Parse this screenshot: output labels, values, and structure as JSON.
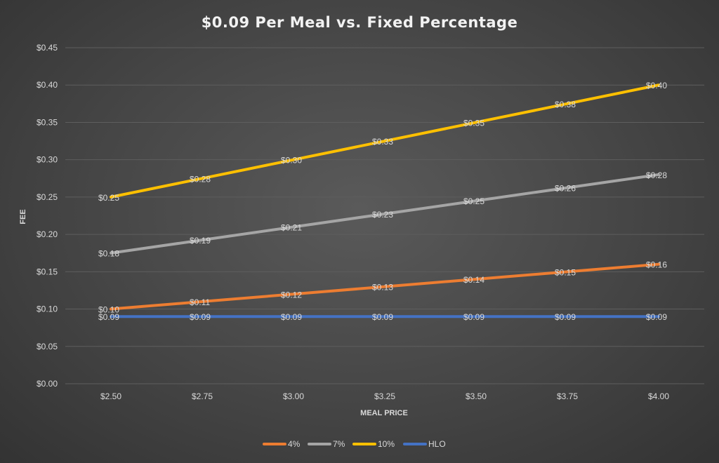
{
  "chart_data": {
    "type": "line",
    "title": "$0.09 Per Meal vs. Fixed Percentage",
    "xlabel": "MEAL PRICE",
    "ylabel": "FEE",
    "categories": [
      "$2.50",
      "$2.75",
      "$3.00",
      "$3.25",
      "$3.50",
      "$3.75",
      "$4.00"
    ],
    "ylim": [
      0,
      0.45
    ],
    "yticks": [
      0,
      0.05,
      0.1,
      0.15,
      0.2,
      0.25,
      0.3,
      0.35,
      0.4,
      0.45
    ],
    "ytick_labels": [
      "$0.00",
      "$0.05",
      "$0.10",
      "$0.15",
      "$0.20",
      "$0.25",
      "$0.30",
      "$0.35",
      "$0.40",
      "$0.45"
    ],
    "grid": true,
    "legend_position": "bottom",
    "series": [
      {
        "name": "4%",
        "color": "#ed7d31",
        "values": [
          0.1,
          0.11,
          0.12,
          0.13,
          0.14,
          0.15,
          0.16
        ],
        "labels": [
          "$0.10",
          "$0.11",
          "$0.12",
          "$0.13",
          "$0.14",
          "$0.15",
          "$0.16"
        ]
      },
      {
        "name": "7%",
        "color": "#a5a5a5",
        "values": [
          0.175,
          0.1925,
          0.21,
          0.2275,
          0.245,
          0.2625,
          0.28
        ],
        "labels": [
          "$0.18",
          "$0.19",
          "$0.21",
          "$0.23",
          "$0.25",
          "$0.26",
          "$0.28"
        ]
      },
      {
        "name": "10%",
        "color": "#ffc000",
        "values": [
          0.25,
          0.275,
          0.3,
          0.325,
          0.35,
          0.375,
          0.4
        ],
        "labels": [
          "$0.25",
          "$0.28",
          "$0.30",
          "$0.33",
          "$0.35",
          "$0.38",
          "$0.40"
        ]
      },
      {
        "name": "HLO",
        "color": "#4472c4",
        "values": [
          0.09,
          0.09,
          0.09,
          0.09,
          0.09,
          0.09,
          0.09
        ],
        "labels": [
          "$0.09",
          "$0.09",
          "$0.09",
          "$0.09",
          "$0.09",
          "$0.09",
          "$0.09"
        ]
      }
    ]
  }
}
